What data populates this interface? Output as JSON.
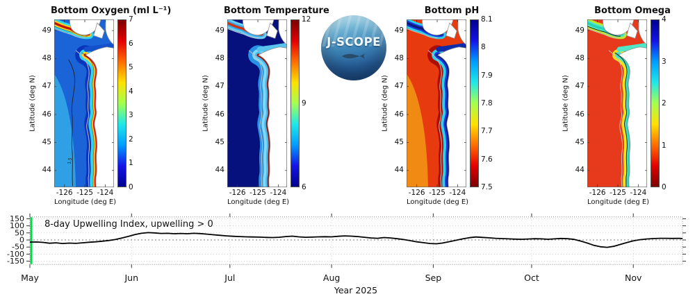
{
  "logo": {
    "label": "J-SCOPE"
  },
  "timeseries": {
    "annotation": "8-day Upwelling Index, upwelling > 0",
    "xlabel": "Year 2025"
  },
  "map_panels": [
    {
      "id": "bottom-oxygen",
      "title": "Bottom Oxygen (ml L⁻¹)",
      "ylabel": "Latitude (deg N)",
      "xlabel": "Longitude (deg E)",
      "lat_ticks": [
        "49",
        "48",
        "47",
        "46",
        "45",
        "44"
      ],
      "lon_ticks": [
        "-126",
        "-125",
        "-124"
      ],
      "contour_label": "1.5",
      "colorbar": {
        "ticks_top_to_bottom": [
          "7",
          "6",
          "5",
          "4",
          "3",
          "2",
          "1",
          "0"
        ],
        "colors_top_to_bottom": [
          "#7c0000",
          "#e30000",
          "#ff6d00",
          "#ffe100",
          "#a4ff50",
          "#1fe8e8",
          "#009dff",
          "#1414e8",
          "#000090"
        ]
      },
      "map_colors": {
        "offshore": "#1b64d8",
        "offshore2": "#2fa0e6",
        "band_shelf": "#0b34bc",
        "band_mid": "#2fd6f2",
        "band_inner": "#ffd21e",
        "band_shore": "#d61405",
        "island_mid": "#2fd6f2",
        "island_inner": "#ffd21e",
        "island_shore": "#c41405",
        "strait": "#1550cc",
        "contour_offshore": "#222222",
        "contour_coast": "rgba(20,20,20,0.5)",
        "land": "#ffffff"
      }
    },
    {
      "id": "bottom-temperature",
      "title": "Bottom Temperature",
      "ylabel": "Latitude (deg N)",
      "xlabel": "Longitude (deg E)",
      "lat_ticks": [
        "49",
        "48",
        "47",
        "46",
        "45",
        "44"
      ],
      "lon_ticks": [
        "-126",
        "-125",
        "-124"
      ],
      "contour_label": "",
      "colorbar": {
        "ticks_top_to_bottom": [
          "12",
          "9",
          "6"
        ],
        "colors_top_to_bottom": [
          "#7c0000",
          "#e30000",
          "#ff6d00",
          "#ffe100",
          "#a4ff50",
          "#1fe8e8",
          "#009dff",
          "#1414e8",
          "#000090"
        ]
      },
      "map_colors": {
        "offshore": "#06117d",
        "offshore2": "#06117d",
        "band_shelf": "#2892e4",
        "band_mid": "#7fd9f7",
        "band_inner": "#49b9ee",
        "band_shore": "#9c1206",
        "island_mid": "#6fcdf2",
        "island_inner": "#39a8e8",
        "island_shore": "#cc3310",
        "strait": "#57c4ee",
        "contour_offshore": "rgba(0,0,0,0)",
        "contour_coast": "rgba(0,0,0,0)",
        "land": "#ffffff"
      }
    },
    {
      "id": "bottom-ph",
      "title": "Bottom pH",
      "ylabel": "Latitude (deg N)",
      "xlabel": "Longitude (deg E)",
      "lat_ticks": [
        "49",
        "48",
        "47",
        "46",
        "45",
        "44"
      ],
      "lon_ticks": [
        "-126",
        "-125",
        "-124"
      ],
      "contour_label": "",
      "colorbar": {
        "ticks_top_to_bottom": [
          "8.1",
          "8",
          "7.9",
          "7.8",
          "7.7",
          "7.6",
          "7.5"
        ],
        "colors_top_to_bottom": [
          "#000090",
          "#1414e8",
          "#009dff",
          "#1fe8e8",
          "#a4ff50",
          "#ffe100",
          "#ff6d00",
          "#e30000",
          "#7c0000"
        ]
      },
      "map_colors": {
        "offshore": "#e73a0e",
        "offshore2": "#f18a12",
        "band_shelf": "#ae0e01",
        "band_mid": "#2fd0e8",
        "band_inner": "#1a3ae0",
        "band_shore": "#0a1a78",
        "island_mid": "#2fd0e8",
        "island_inner": "#1a3ae0",
        "island_shore": "#0a1a78",
        "strait": "#0d2cab",
        "contour_offshore": "rgba(0,0,0,0)",
        "contour_coast": "rgba(0,0,0,0)",
        "land": "#ffffff"
      }
    },
    {
      "id": "bottom-omega",
      "title": "Bottom Omega",
      "ylabel": "Latitude (deg N)",
      "xlabel": "Longitude (deg E)",
      "lat_ticks": [
        "49",
        "48",
        "47",
        "46",
        "45",
        "44"
      ],
      "lon_ticks": [
        "-126",
        "-125",
        "-124"
      ],
      "contour_label": "",
      "colorbar": {
        "ticks_top_to_bottom": [
          "4",
          "3",
          "2",
          "1",
          "0"
        ],
        "colors_top_to_bottom": [
          "#000090",
          "#1414e8",
          "#009dff",
          "#1fe8e8",
          "#a4ff50",
          "#ffe100",
          "#ff6d00",
          "#e30000",
          "#7c0000"
        ]
      },
      "map_colors": {
        "offshore": "#e7391b",
        "offshore2": "#e7391b",
        "band_shelf": "#e7391b",
        "band_mid": "#ffdf17",
        "band_inner": "#4fe8c7",
        "band_shore": "#27d2b4",
        "island_mid": "#bfe531",
        "island_inner": "#4fe8c7",
        "island_shore": "#27d2b4",
        "strait": "#4fe8c7",
        "contour_offshore": "rgba(0,0,0,0)",
        "contour_coast": "#111111",
        "land": "#ffffff"
      }
    }
  ],
  "chart_data": [
    {
      "type": "heatmap",
      "title": "Bottom Oxygen (ml L⁻¹)",
      "xlabel": "Longitude (deg E)",
      "ylabel": "Latitude (deg N)",
      "xlim": [
        -126.5,
        -123.6
      ],
      "ylim": [
        43.4,
        49.4
      ],
      "x_ticks": [
        -126,
        -125,
        -124
      ],
      "y_ticks": [
        44,
        45,
        46,
        47,
        48,
        49
      ],
      "colormap": "jet",
      "value_range": [
        0,
        7
      ],
      "colorbar_ticks": [
        0,
        1,
        2,
        3,
        4,
        5,
        6,
        7
      ],
      "summary": "Hypoxic blue bottom water (<2 ml/L, contour label 1.5) across the WA/OR shelf; oxygenated red water (6-7) along the immediate coast and northern straits; white land with gray coastline."
    },
    {
      "type": "heatmap",
      "title": "Bottom Temperature",
      "xlabel": "Longitude (deg E)",
      "ylabel": "Latitude (deg N)",
      "xlim": [
        -126.5,
        -123.6
      ],
      "ylim": [
        43.4,
        49.4
      ],
      "x_ticks": [
        -126,
        -125,
        -124
      ],
      "y_ticks": [
        44,
        45,
        46,
        47,
        48,
        49
      ],
      "colormap": "jet",
      "value_range": [
        6,
        12
      ],
      "colorbar_ticks": [
        6,
        9,
        12
      ],
      "summary": "Cold dark-blue (~6) offshore bottom water; cyan band (8-9) over the shelf; warm dark-red strip (>11) hugging the coast south of the Strait of Juan de Fuca."
    },
    {
      "type": "heatmap",
      "title": "Bottom pH",
      "xlabel": "Longitude (deg E)",
      "ylabel": "Latitude (deg N)",
      "xlim": [
        -126.5,
        -123.6
      ],
      "ylim": [
        43.4,
        49.4
      ],
      "x_ticks": [
        -126,
        -125,
        -124
      ],
      "y_ticks": [
        44,
        45,
        46,
        47,
        48,
        49
      ],
      "colormap": "jet reversed",
      "value_range": [
        7.5,
        8.1
      ],
      "colorbar_ticks": [
        7.5,
        7.6,
        7.7,
        7.8,
        7.9,
        8.0,
        8.1
      ],
      "summary": "Low pH (7.5-7.7, red/dark-red) offshore and over the shelf; higher pH (7.9-8.1, cyan/blue) along the immediate coast and northern straits."
    },
    {
      "type": "heatmap",
      "title": "Bottom Omega",
      "xlabel": "Longitude (deg E)",
      "ylabel": "Latitude (deg N)",
      "xlim": [
        -126.5,
        -123.6
      ],
      "ylim": [
        43.4,
        49.4
      ],
      "x_ticks": [
        -126,
        -125,
        -124
      ],
      "y_ticks": [
        44,
        45,
        46,
        47,
        48,
        49
      ],
      "colormap": "jet reversed",
      "value_range": [
        0,
        4
      ],
      "colorbar_ticks": [
        0,
        1,
        2,
        3,
        4
      ],
      "summary": "Aragonite-undersaturated red water (Omega<1) over nearly the whole domain; yellow/cyan fringe (1-2) at the coast with a black Omega=1 contour tracking the shoreline."
    },
    {
      "type": "line",
      "title": "8-day Upwelling Index, upwelling > 0",
      "xlabel": "Year 2025",
      "x_axis": "days since May 1, 2025",
      "x_tick_labels": [
        "May",
        "Jun",
        "Jul",
        "Aug",
        "Sep",
        "Oct",
        "Nov"
      ],
      "x_tick_days": [
        0,
        31,
        61,
        92,
        123,
        153,
        184
      ],
      "xlim": [
        0,
        199
      ],
      "ylim": [
        -172,
        172
      ],
      "y_ticks": [
        150,
        100,
        50,
        0,
        -50,
        -100,
        -150
      ],
      "grid": "dotted",
      "line_color": "#000000",
      "start_marker": {
        "day": 0,
        "color": "#00dc46"
      },
      "points": [
        [
          0,
          -15
        ],
        [
          2,
          -14
        ],
        [
          4,
          -17
        ],
        [
          6,
          -23
        ],
        [
          8,
          -20
        ],
        [
          10,
          -25
        ],
        [
          12,
          -22
        ],
        [
          14,
          -24
        ],
        [
          16,
          -20
        ],
        [
          18,
          -16
        ],
        [
          20,
          -13
        ],
        [
          22,
          -9
        ],
        [
          24,
          -4
        ],
        [
          26,
          3
        ],
        [
          28,
          13
        ],
        [
          30,
          25
        ],
        [
          32,
          38
        ],
        [
          34,
          47
        ],
        [
          36,
          52
        ],
        [
          38,
          50
        ],
        [
          40,
          46
        ],
        [
          42,
          47
        ],
        [
          44,
          44
        ],
        [
          46,
          46
        ],
        [
          48,
          44
        ],
        [
          50,
          47
        ],
        [
          52,
          45
        ],
        [
          54,
          41
        ],
        [
          56,
          37
        ],
        [
          58,
          33
        ],
        [
          60,
          29
        ],
        [
          62,
          26
        ],
        [
          64,
          24
        ],
        [
          66,
          22
        ],
        [
          68,
          21
        ],
        [
          70,
          20
        ],
        [
          72,
          18
        ],
        [
          74,
          17
        ],
        [
          76,
          19
        ],
        [
          78,
          24
        ],
        [
          80,
          27
        ],
        [
          82,
          22
        ],
        [
          84,
          19
        ],
        [
          86,
          20
        ],
        [
          88,
          22
        ],
        [
          90,
          23
        ],
        [
          92,
          22
        ],
        [
          94,
          26
        ],
        [
          96,
          29
        ],
        [
          98,
          27
        ],
        [
          100,
          24
        ],
        [
          102,
          19
        ],
        [
          104,
          14
        ],
        [
          106,
          12
        ],
        [
          108,
          17
        ],
        [
          110,
          14
        ],
        [
          112,
          9
        ],
        [
          114,
          3
        ],
        [
          116,
          -5
        ],
        [
          118,
          -13
        ],
        [
          120,
          -19
        ],
        [
          122,
          -25
        ],
        [
          124,
          -27
        ],
        [
          126,
          -21
        ],
        [
          128,
          -12
        ],
        [
          130,
          -2
        ],
        [
          132,
          8
        ],
        [
          134,
          16
        ],
        [
          136,
          21
        ],
        [
          138,
          18
        ],
        [
          140,
          15
        ],
        [
          142,
          12
        ],
        [
          144,
          10
        ],
        [
          146,
          8
        ],
        [
          148,
          6
        ],
        [
          150,
          5
        ],
        [
          152,
          7
        ],
        [
          154,
          9
        ],
        [
          156,
          8
        ],
        [
          158,
          5
        ],
        [
          160,
          8
        ],
        [
          162,
          11
        ],
        [
          164,
          9
        ],
        [
          166,
          4
        ],
        [
          168,
          -8
        ],
        [
          170,
          -22
        ],
        [
          172,
          -38
        ],
        [
          174,
          -48
        ],
        [
          176,
          -52
        ],
        [
          178,
          -45
        ],
        [
          180,
          -32
        ],
        [
          182,
          -18
        ],
        [
          184,
          -6
        ],
        [
          186,
          2
        ],
        [
          188,
          7
        ],
        [
          190,
          10
        ],
        [
          192,
          12
        ],
        [
          194,
          12
        ],
        [
          196,
          11
        ],
        [
          198,
          12
        ],
        [
          199,
          10
        ]
      ]
    }
  ]
}
